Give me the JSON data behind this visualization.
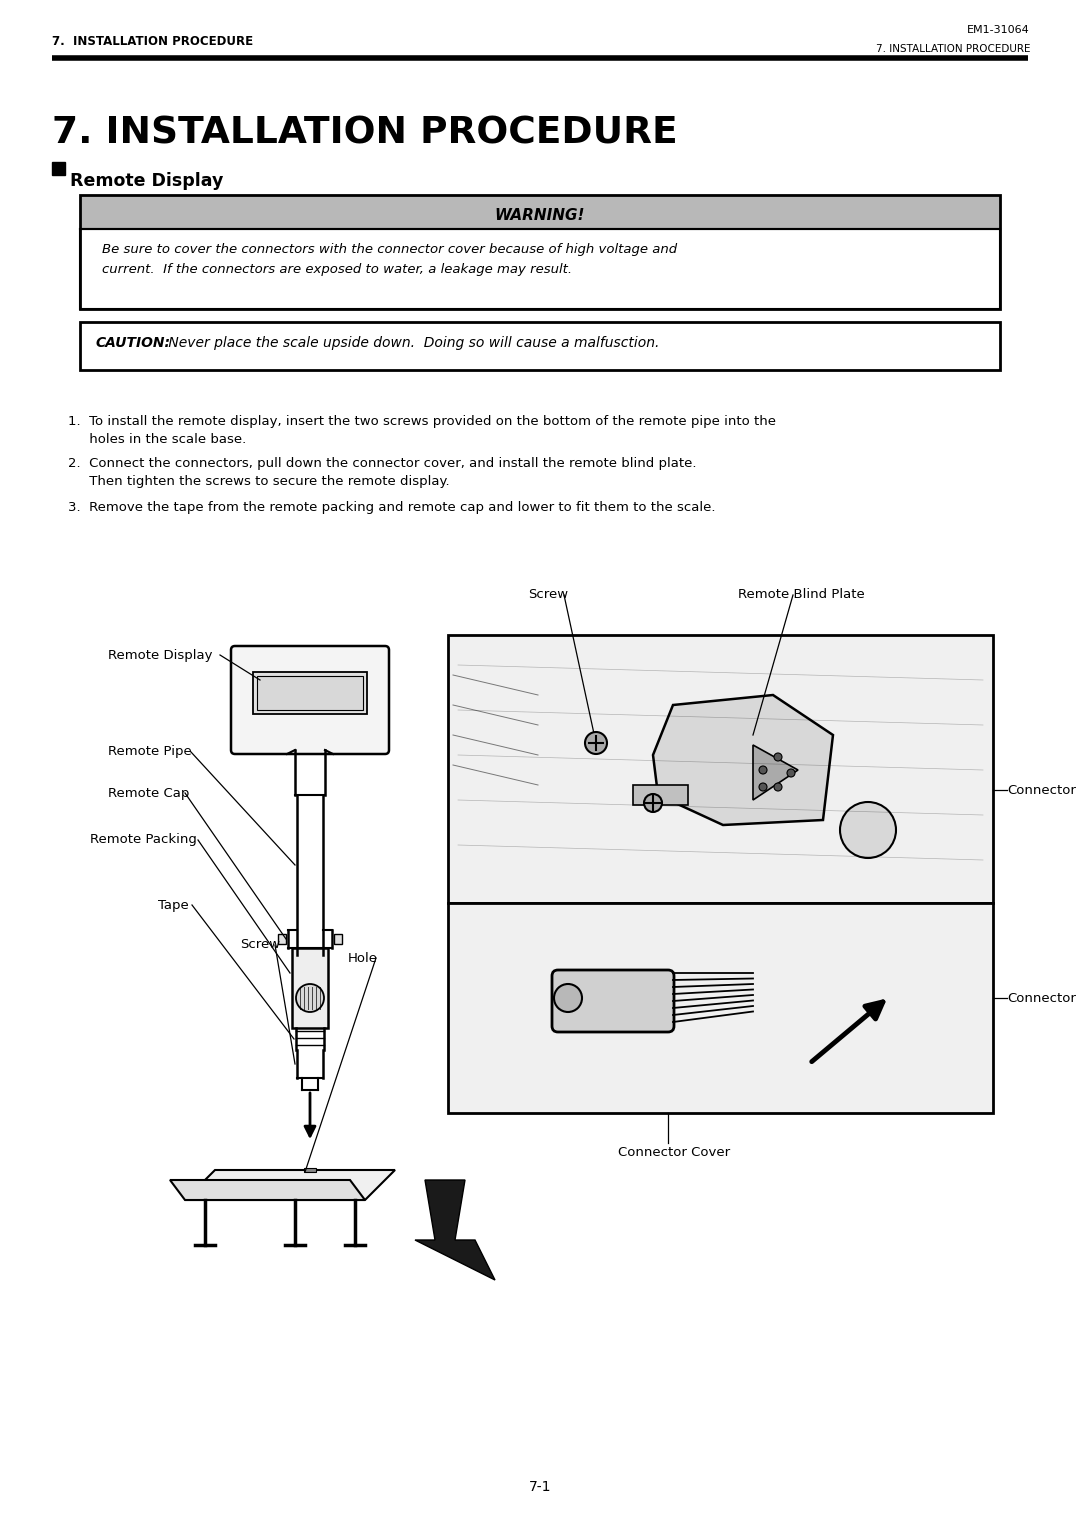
{
  "page_width": 10.8,
  "page_height": 15.25,
  "bg_color": "#ffffff",
  "header_left": "7.  INSTALLATION PROCEDURE",
  "header_right_top": "EM1-31064",
  "header_right_bottom": "7. INSTALLATION PROCEDURE",
  "main_title": "7. INSTALLATION PROCEDURE",
  "section_title": "Remote Display",
  "warning_header": "WARNING!",
  "warning_bg": "#b8b8b8",
  "warning_text_line1": "Be sure to cover the connectors with the connector cover because of high voltage and",
  "warning_text_line2": "current.  If the connectors are exposed to water, a leakage may result.",
  "caution_bold": "CAUTION:",
  "caution_normal": " Never place the scale upside down.  Doing so will cause a malfusction.",
  "step1_a": "1.  To install the remote display, insert the two screws provided on the bottom of the remote pipe into the",
  "step1_b": "     holes in the scale base.",
  "step2_a": "2.  Connect the connectors, pull down the connector cover, and install the remote blind plate.",
  "step2_b": "     Then tighten the screws to secure the remote display.",
  "step3": "3.  Remove the tape from the remote packing and remote cap and lower to fit them to the scale.",
  "lbl_remote_display": "Remote Display",
  "lbl_remote_pipe": "Remote Pipe",
  "lbl_remote_cap": "Remote Cap",
  "lbl_remote_packing": "Remote Packing",
  "lbl_tape": "Tape",
  "lbl_screw_left": "Screw",
  "lbl_hole": "Hole",
  "lbl_screw_right": "Screw",
  "lbl_remote_blind_plate": "Remote Blind Plate",
  "lbl_connector_top": "Connector",
  "lbl_connector_bot": "Connector",
  "lbl_connector_cover": "Connector Cover",
  "footer": "7-1"
}
